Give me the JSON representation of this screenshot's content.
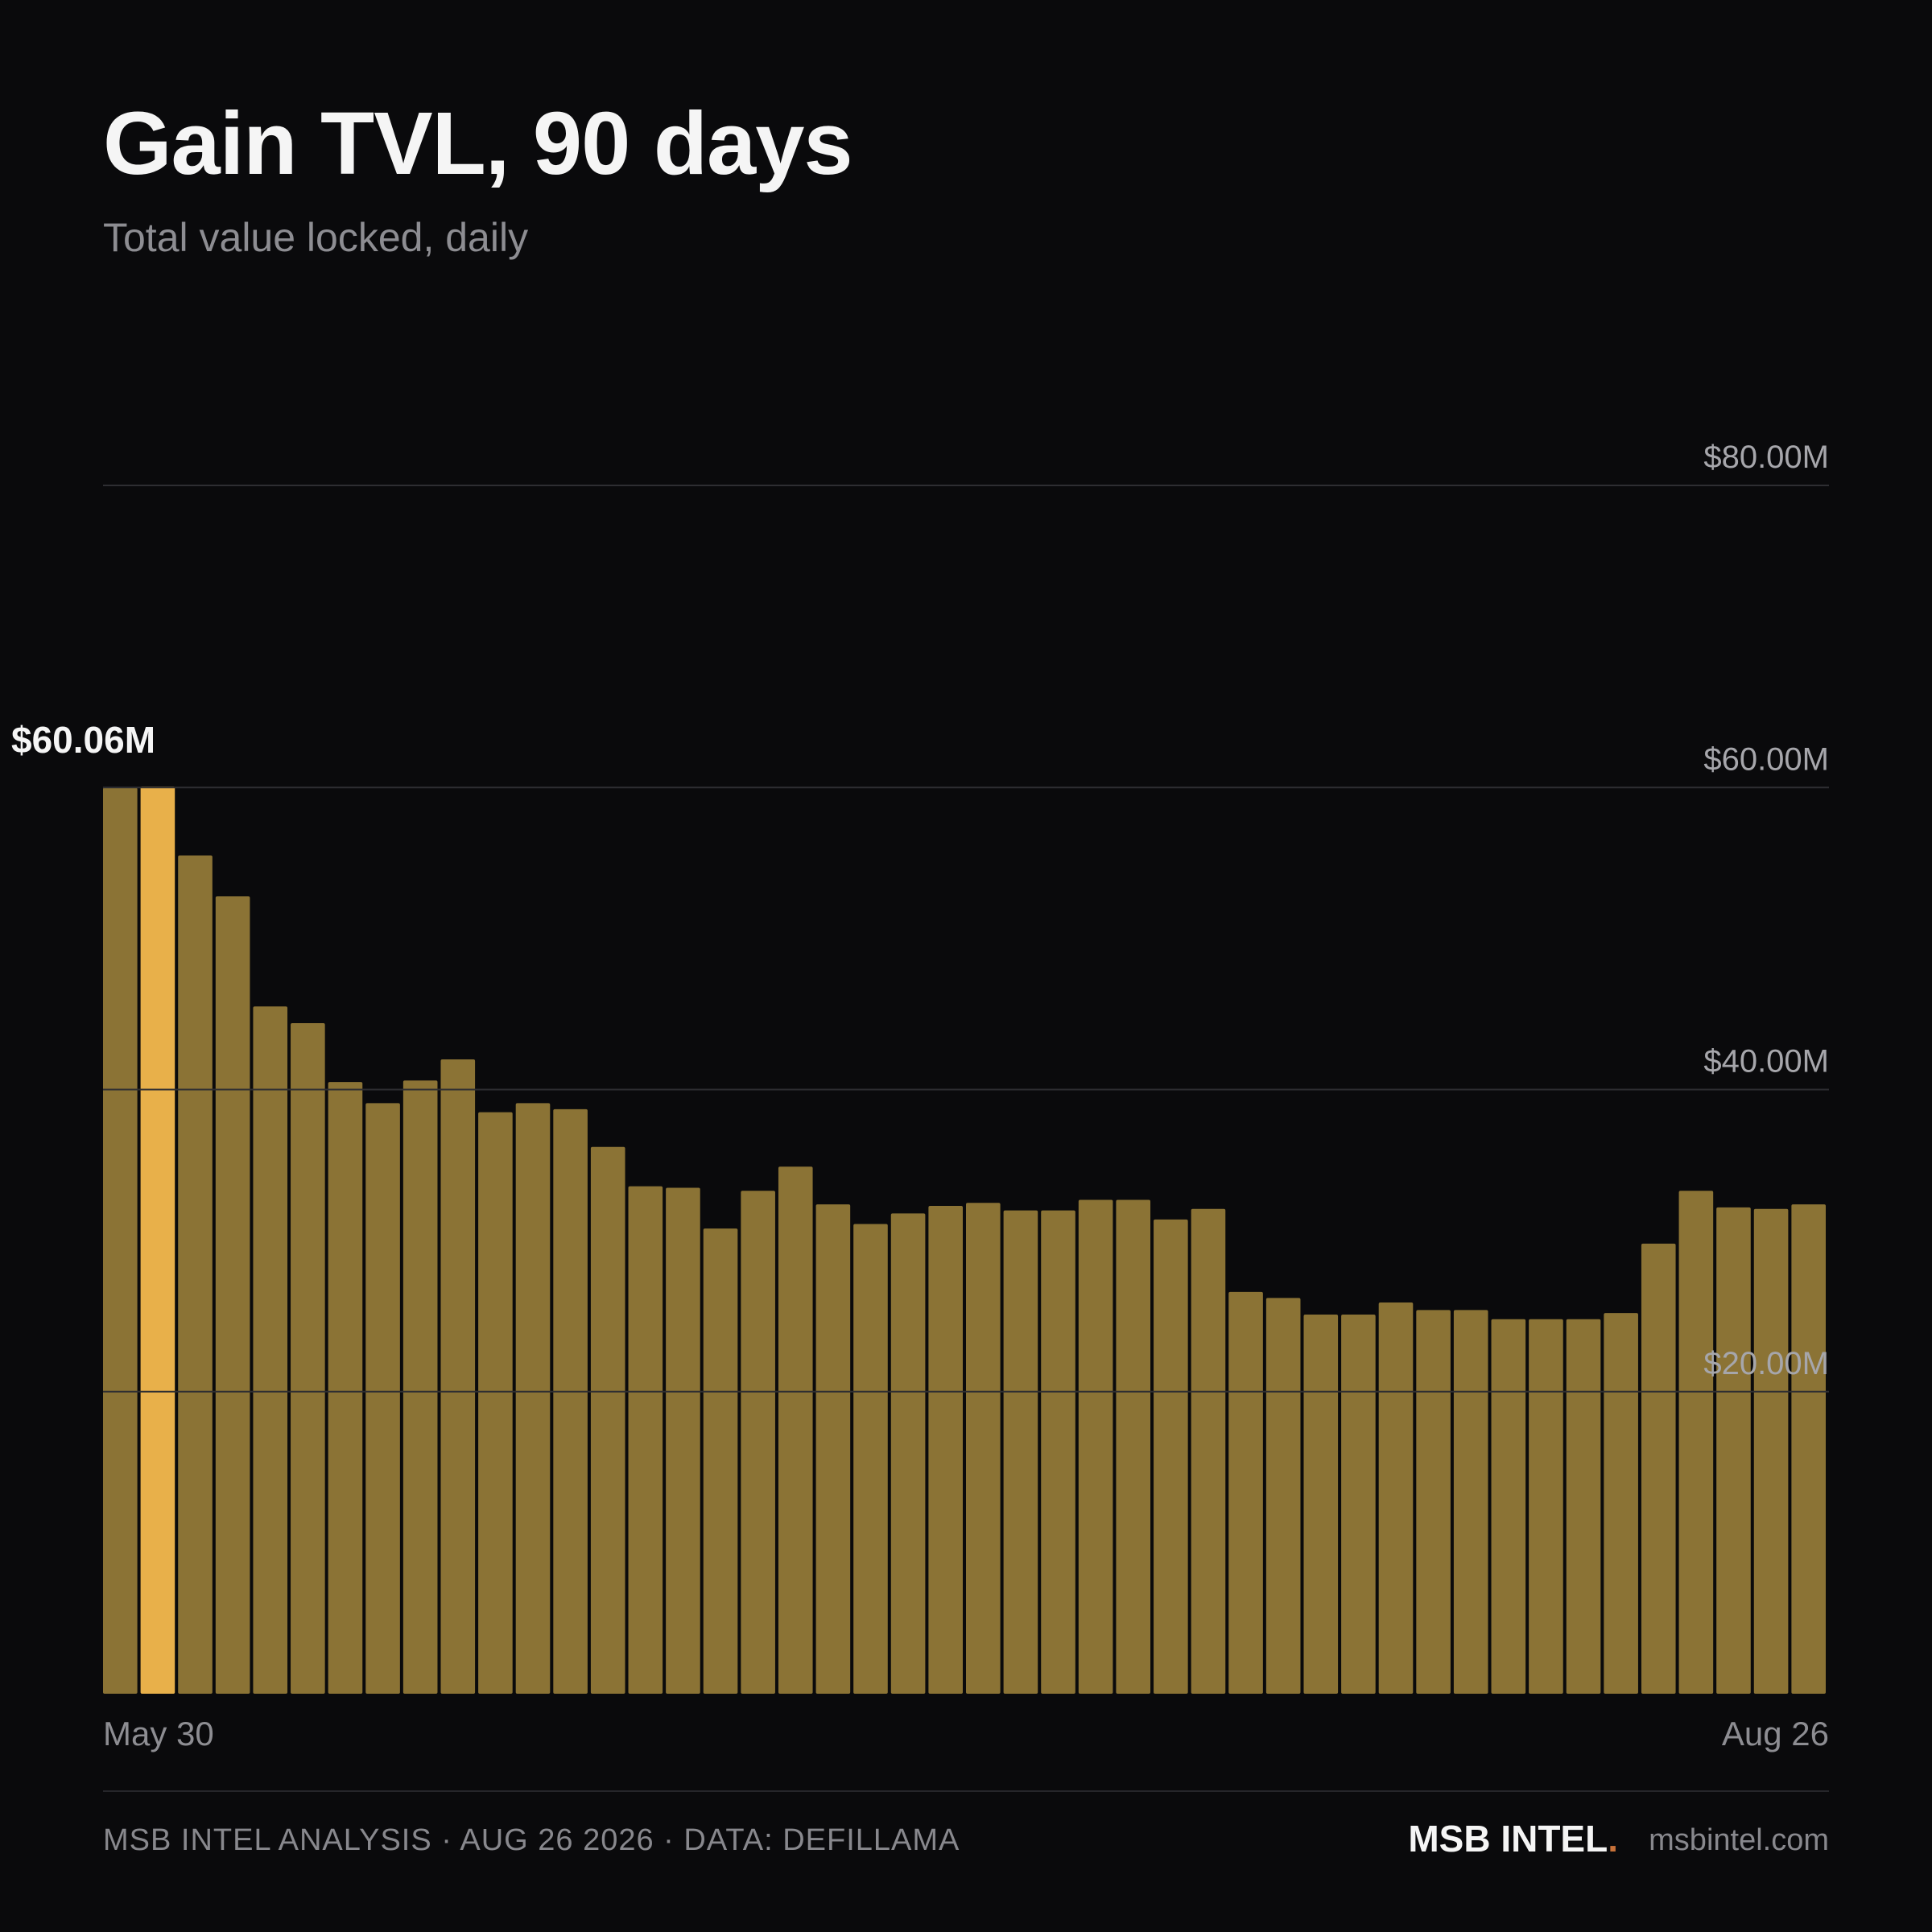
{
  "header": {
    "title": "Gain TVL, 90 days",
    "subtitle": "Total value locked, daily"
  },
  "footer": {
    "source": "MSB INTEL ANALYSIS · AUG 26 2026 · DATA: DEFILLAMA",
    "brand": "MSB INTEL",
    "brand_dot": ".",
    "site": "msbintel.com"
  },
  "colors": {
    "background": "#0a0a0c",
    "bar": "#8b7335",
    "highlight": "#e8b04a",
    "grid": "#2e2e32",
    "accent_dot": "#c8723a"
  },
  "chart_data": {
    "type": "bar",
    "title": "Gain TVL, 90 days",
    "subtitle": "Total value locked, daily",
    "xlabel": "",
    "ylabel": "",
    "x_tick_labels": [
      "May 30",
      "Aug 26"
    ],
    "y_ticks": [
      20,
      40,
      60,
      80
    ],
    "y_tick_labels": [
      "$20.00M",
      "$40.00M",
      "$60.00M",
      "$80.00M"
    ],
    "ylim": [
      0,
      80
    ],
    "unit": "$M",
    "grid": true,
    "highlight_index": 1,
    "highlight_label": "$60.06M",
    "values": [
      60.0,
      60.06,
      55.5,
      52.8,
      45.5,
      44.4,
      40.5,
      39.1,
      40.6,
      42.0,
      38.5,
      39.1,
      38.7,
      36.2,
      33.6,
      33.5,
      30.8,
      33.3,
      34.9,
      32.4,
      31.1,
      31.8,
      32.3,
      32.5,
      32.0,
      32.0,
      32.7,
      32.7,
      31.4,
      32.1,
      26.6,
      26.2,
      25.1,
      25.1,
      25.9,
      25.4,
      25.4,
      24.8,
      24.8,
      24.8,
      25.2,
      29.8,
      33.3,
      32.2,
      32.1,
      32.4
    ]
  }
}
